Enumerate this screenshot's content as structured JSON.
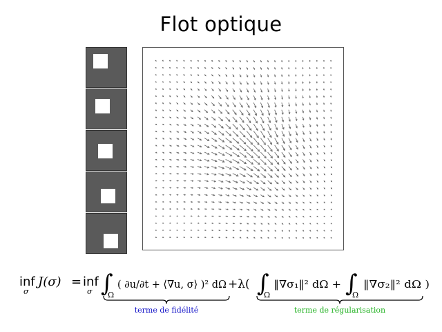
{
  "title": "Flot optique",
  "colors": {
    "frame_bg": "#5a5a5a",
    "square": "#ffffff",
    "arrow": "#6e6e6e",
    "fidelity_label": "#1414c8",
    "regularization_label": "#21b121"
  },
  "frames": [
    {
      "square_offset": 0
    },
    {
      "square_offset": 1
    },
    {
      "square_offset": 2
    },
    {
      "square_offset": 3
    },
    {
      "square_offset": 4
    }
  ],
  "vector_field": {
    "grid_cols": 26,
    "grid_rows": 26,
    "motion": "down-right"
  },
  "equation": {
    "lhs_inf": "inf",
    "lhs_sub": "σ",
    "lhs_func": "J(σ)",
    "equals": "=",
    "rhs_inf": "inf",
    "rhs_sub": "σ",
    "int_sub": "Ω",
    "fidelity_body": "( ∂u/∂t + ⟨∇u, σ⟩ )² dΩ",
    "plus_lambda": "+λ(",
    "reg_term1": "‖∇σ₁‖² dΩ +",
    "reg_term2": "‖∇σ₂‖² dΩ )",
    "fidelity_label": "terme de fidélité",
    "regularization_label": "terme de régularisation"
  }
}
